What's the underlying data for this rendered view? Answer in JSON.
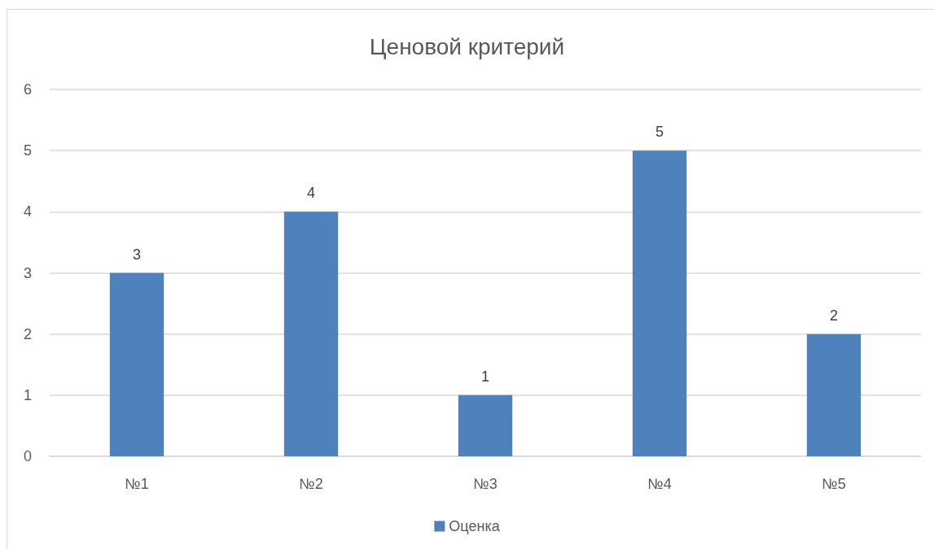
{
  "chart_data": {
    "type": "bar",
    "title": "Ценовой критерий",
    "categories": [
      "№1",
      "№2",
      "№3",
      "№4",
      "№5"
    ],
    "series": [
      {
        "name": "Оценка",
        "color": "#4f81bd",
        "values": [
          3,
          4,
          1,
          5,
          2
        ]
      }
    ],
    "ylim": [
      0,
      6
    ],
    "yticks": [
      0,
      1,
      2,
      3,
      4,
      5,
      6
    ],
    "grid": "y",
    "legend": "bottom",
    "data_labels": true
  }
}
